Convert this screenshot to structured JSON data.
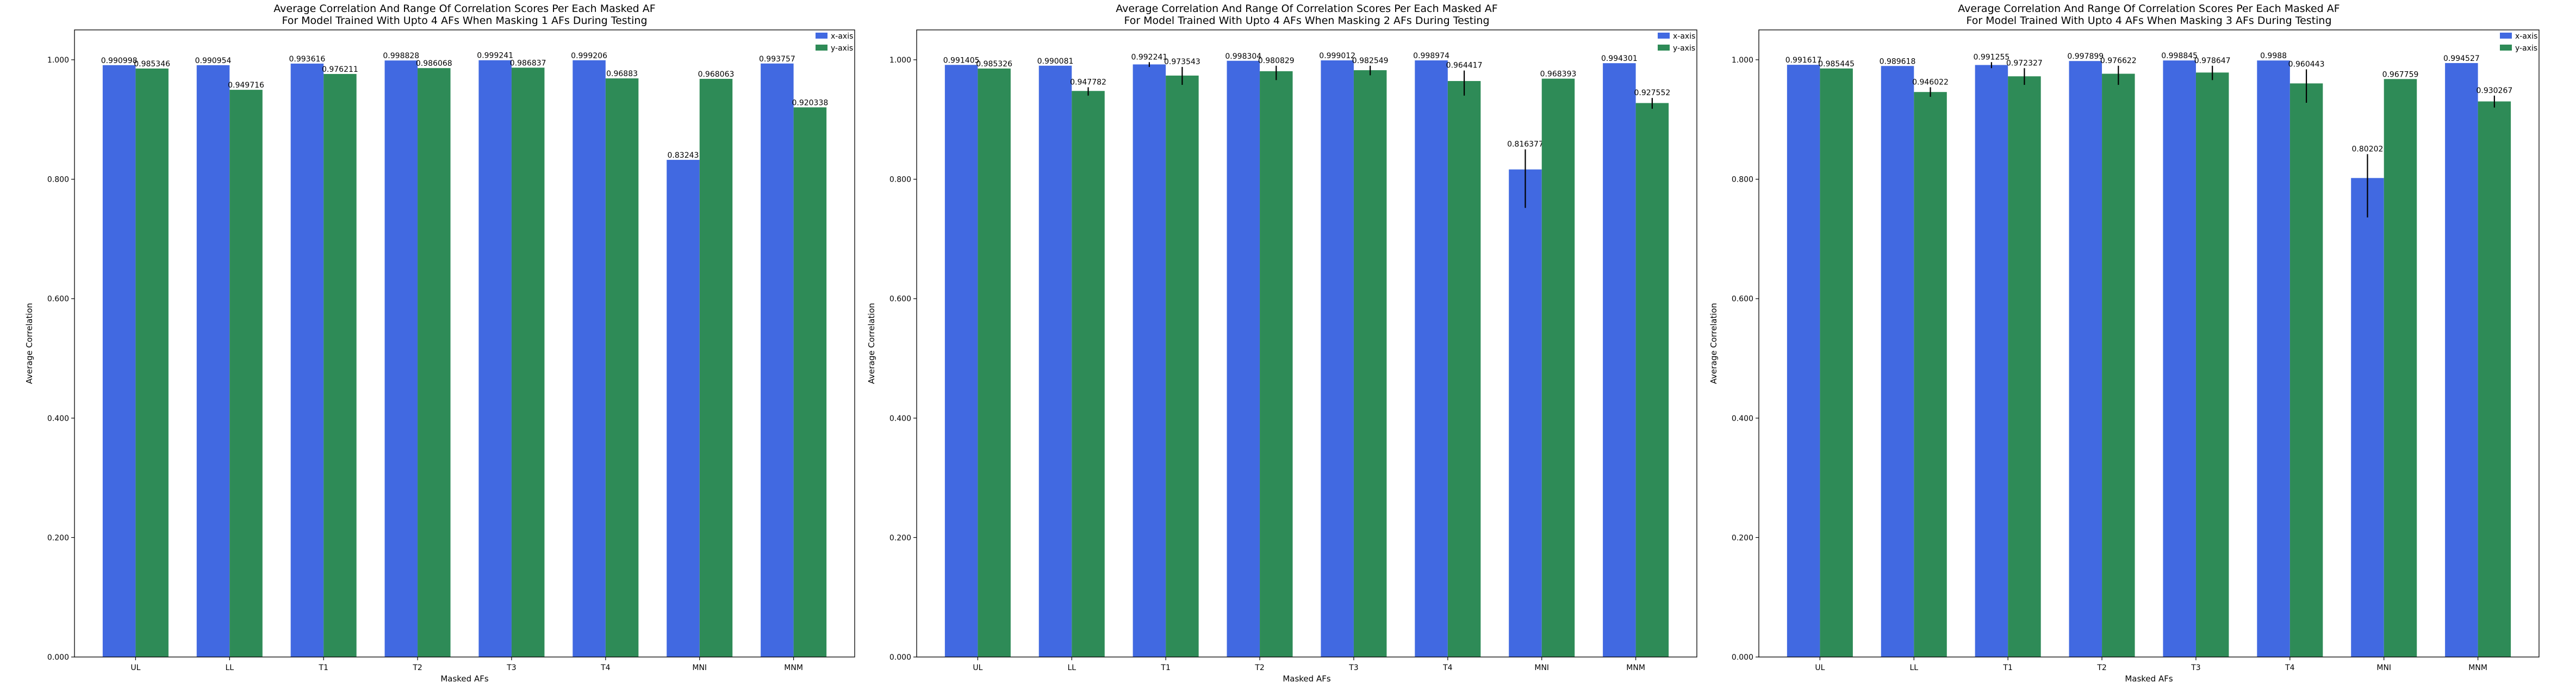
{
  "colors": {
    "x_axis": "#4169e1",
    "y_axis": "#2e8b57",
    "error_bar": "#000000"
  },
  "chart_data": [
    {
      "type": "bar",
      "title": "Average Correlation And Range Of Correlation Scores Per Each Masked AF",
      "subtitle": "For Model Trained With Upto 4 AFs When Masking 1 AFs During Testing",
      "xlabel": "Masked AFs",
      "ylabel": "Average Correlation",
      "ylim": [
        0,
        1.05
      ],
      "yticks": [
        "0.000",
        "0.200",
        "0.400",
        "0.600",
        "0.800",
        "1.000"
      ],
      "legend_position": "top-right",
      "categories": [
        "UL",
        "LL",
        "T1",
        "T2",
        "T3",
        "T4",
        "MNI",
        "MNM"
      ],
      "series": [
        {
          "name": "x-axis",
          "values": [
            0.990998,
            0.990954,
            0.993616,
            0.998828,
            0.999241,
            0.999206,
            0.83243,
            0.993757
          ],
          "labels": [
            "0.990998",
            "0.990954",
            "0.993616",
            "0.998828",
            "0.999241",
            "0.999206",
            "0.83243",
            "0.993757"
          ],
          "ranges": [
            null,
            null,
            null,
            null,
            null,
            null,
            null,
            null
          ]
        },
        {
          "name": "y-axis",
          "values": [
            0.985346,
            0.949716,
            0.976211,
            0.986068,
            0.986837,
            0.96883,
            0.968063,
            0.920338
          ],
          "labels": [
            "0.985346",
            "0.949716",
            "0.976211",
            "0.986068",
            "0.986837",
            "0.96883",
            "0.968063",
            "0.920338"
          ],
          "ranges": [
            null,
            null,
            null,
            null,
            null,
            null,
            null,
            null
          ]
        }
      ]
    },
    {
      "type": "bar",
      "title": "Average Correlation And Range Of Correlation Scores Per Each Masked AF",
      "subtitle": "For Model Trained With Upto 4 AFs When Masking 2 AFs During Testing",
      "xlabel": "Masked AFs",
      "ylabel": "Average Correlation",
      "ylim": [
        0,
        1.05
      ],
      "yticks": [
        "0.000",
        "0.200",
        "0.400",
        "0.600",
        "0.800",
        "1.000"
      ],
      "legend_position": "top-right",
      "categories": [
        "UL",
        "LL",
        "T1",
        "T2",
        "T3",
        "T4",
        "MNI",
        "MNM"
      ],
      "series": [
        {
          "name": "x-axis",
          "values": [
            0.991405,
            0.990081,
            0.992241,
            0.998304,
            0.999012,
            0.998974,
            0.816377,
            0.994301
          ],
          "labels": [
            "0.991405",
            "0.990081",
            "0.992241",
            "0.998304",
            "0.999012",
            "0.998974",
            "0.816377",
            "0.994301"
          ],
          "ranges": [
            null,
            null,
            [
              0.988,
              0.996
            ],
            null,
            null,
            null,
            [
              0.752,
              0.85
            ],
            null
          ]
        },
        {
          "name": "y-axis",
          "values": [
            0.985326,
            0.947782,
            0.973543,
            0.980829,
            0.982549,
            0.964417,
            0.968393,
            0.927552
          ],
          "labels": [
            "0.985326",
            "0.947782",
            "0.973543",
            "0.980829",
            "0.982549",
            "0.964417",
            "0.968393",
            "0.927552"
          ],
          "ranges": [
            null,
            [
              0.94,
              0.954
            ],
            [
              0.958,
              0.988
            ],
            [
              0.966,
              0.99
            ],
            [
              0.974,
              0.99
            ],
            [
              0.94,
              0.982
            ],
            null,
            [
              0.918,
              0.936
            ]
          ]
        }
      ]
    },
    {
      "type": "bar",
      "title": "Average Correlation And Range Of Correlation Scores Per Each Masked AF",
      "subtitle": "For Model Trained With Upto 4 AFs When Masking 3 AFs During Testing",
      "xlabel": "Masked AFs",
      "ylabel": "Average Correlation",
      "ylim": [
        0,
        1.05
      ],
      "yticks": [
        "0.000",
        "0.200",
        "0.400",
        "0.600",
        "0.800",
        "1.000"
      ],
      "legend_position": "top-right",
      "categories": [
        "UL",
        "LL",
        "T1",
        "T2",
        "T3",
        "T4",
        "MNI",
        "MNM"
      ],
      "series": [
        {
          "name": "x-axis",
          "values": [
            0.991617,
            0.989618,
            0.991255,
            0.997899,
            0.998845,
            0.9988,
            0.80202,
            0.994527
          ],
          "labels": [
            "0.991617",
            "0.989618",
            "0.991255",
            "0.997899",
            "0.998845",
            "0.9988",
            "0.80202",
            "0.994527"
          ],
          "ranges": [
            null,
            null,
            [
              0.986,
              0.996
            ],
            null,
            null,
            null,
            [
              0.736,
              0.842
            ],
            null
          ]
        },
        {
          "name": "y-axis",
          "values": [
            0.985445,
            0.946022,
            0.972327,
            0.976622,
            0.978647,
            0.960443,
            0.967759,
            0.930267
          ],
          "labels": [
            "0.985445",
            "0.946022",
            "0.972327",
            "0.976622",
            "0.978647",
            "0.960443",
            "0.967759",
            "0.930267"
          ],
          "ranges": [
            null,
            [
              0.938,
              0.954
            ],
            [
              0.958,
              0.986
            ],
            [
              0.958,
              0.99
            ],
            [
              0.966,
              0.99
            ],
            [
              0.928,
              0.984
            ],
            null,
            [
              0.92,
              0.94
            ]
          ]
        }
      ]
    }
  ]
}
